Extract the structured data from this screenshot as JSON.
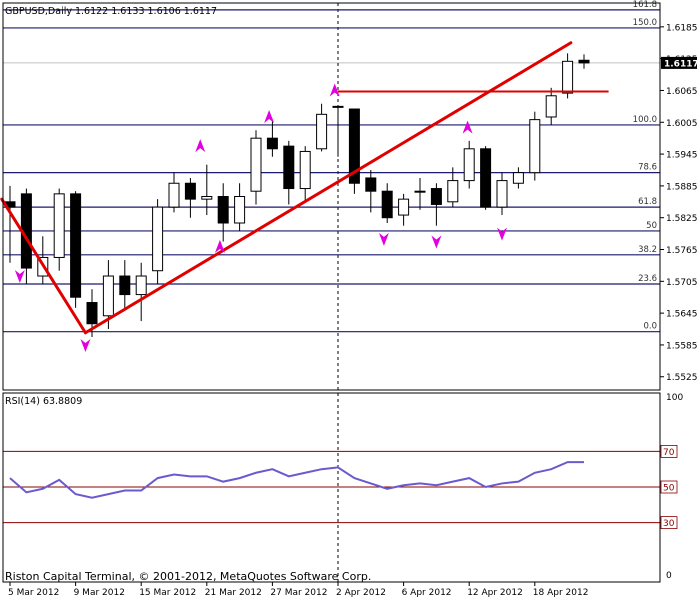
{
  "window": {
    "header": "GBPUSD,Daily  1.6122 1.6133 1.6106 1.6117",
    "footer": "Riston Capital Terminal, © 2001-2012, MetaQuotes Software Corp."
  },
  "colors": {
    "background": "#ffffff",
    "frame": "#000000",
    "fib_line": "#1a1a6e",
    "trendline": "#e00000",
    "arrow": "#e000e0",
    "rsi_line": "#6a5acd",
    "rsi_level": "#8b0000",
    "price_marker_bg": "#000000",
    "price_marker_text": "#ffffff"
  },
  "chart_data": [
    {
      "type": "candlestick",
      "symbol": "GBPUSD",
      "timeframe": "Daily",
      "header_ohlc": {
        "open": 1.6122,
        "high": 1.6133,
        "low": 1.6106,
        "close": 1.6117
      },
      "current_price": "1.6117",
      "ylim": [
        1.55,
        1.623
      ],
      "y_ticks": [
        "1.6185",
        "1.6125",
        "1.6065",
        "1.6005",
        "1.5945",
        "1.5885",
        "1.5825",
        "1.5765",
        "1.5705",
        "1.5645",
        "1.5585",
        "1.5525"
      ],
      "x_ticks": [
        {
          "label": "5 Mar 2012",
          "index": 0
        },
        {
          "label": "9 Mar 2012",
          "index": 4
        },
        {
          "label": "15 Mar 2012",
          "index": 8
        },
        {
          "label": "21 Mar 2012",
          "index": 12
        },
        {
          "label": "27 Mar 2012",
          "index": 16
        },
        {
          "label": "2 Apr 2012",
          "index": 20
        },
        {
          "label": "6 Apr 2012",
          "index": 24
        },
        {
          "label": "12 Apr 2012",
          "index": 28
        },
        {
          "label": "18 Apr 2012",
          "index": 32
        }
      ],
      "candles": [
        {
          "o": 1.5855,
          "h": 1.5885,
          "l": 1.574,
          "c": 1.5845
        },
        {
          "o": 1.587,
          "h": 1.588,
          "l": 1.57,
          "c": 1.573
        },
        {
          "o": 1.5715,
          "h": 1.579,
          "l": 1.57,
          "c": 1.575
        },
        {
          "o": 1.575,
          "h": 1.588,
          "l": 1.5725,
          "c": 1.587
        },
        {
          "o": 1.587,
          "h": 1.5875,
          "l": 1.5655,
          "c": 1.5675
        },
        {
          "o": 1.5665,
          "h": 1.569,
          "l": 1.56,
          "c": 1.5625
        },
        {
          "o": 1.564,
          "h": 1.5745,
          "l": 1.5615,
          "c": 1.5715
        },
        {
          "o": 1.5715,
          "h": 1.5745,
          "l": 1.565,
          "c": 1.568
        },
        {
          "o": 1.568,
          "h": 1.574,
          "l": 1.563,
          "c": 1.5715
        },
        {
          "o": 1.5725,
          "h": 1.586,
          "l": 1.57,
          "c": 1.5845
        },
        {
          "o": 1.5845,
          "h": 1.591,
          "l": 1.5835,
          "c": 1.589
        },
        {
          "o": 1.589,
          "h": 1.59,
          "l": 1.5825,
          "c": 1.586
        },
        {
          "o": 1.586,
          "h": 1.5925,
          "l": 1.583,
          "c": 1.5865
        },
        {
          "o": 1.5865,
          "h": 1.589,
          "l": 1.578,
          "c": 1.5815
        },
        {
          "o": 1.5815,
          "h": 1.589,
          "l": 1.58,
          "c": 1.5865
        },
        {
          "o": 1.5875,
          "h": 1.599,
          "l": 1.585,
          "c": 1.5975
        },
        {
          "o": 1.5975,
          "h": 1.601,
          "l": 1.594,
          "c": 1.5955
        },
        {
          "o": 1.596,
          "h": 1.597,
          "l": 1.585,
          "c": 1.588
        },
        {
          "o": 1.588,
          "h": 1.596,
          "l": 1.5855,
          "c": 1.595
        },
        {
          "o": 1.5955,
          "h": 1.604,
          "l": 1.595,
          "c": 1.602
        },
        {
          "o": 1.6035,
          "h": 1.6035,
          "l": 1.594,
          "c": 1.6035
        },
        {
          "o": 1.603,
          "h": 1.603,
          "l": 1.587,
          "c": 1.589
        },
        {
          "o": 1.59,
          "h": 1.5915,
          "l": 1.5835,
          "c": 1.5875
        },
        {
          "o": 1.5875,
          "h": 1.589,
          "l": 1.5815,
          "c": 1.5825
        },
        {
          "o": 1.583,
          "h": 1.587,
          "l": 1.581,
          "c": 1.586
        },
        {
          "o": 1.5875,
          "h": 1.59,
          "l": 1.584,
          "c": 1.5875
        },
        {
          "o": 1.588,
          "h": 1.589,
          "l": 1.581,
          "c": 1.585
        },
        {
          "o": 1.5855,
          "h": 1.592,
          "l": 1.5845,
          "c": 1.5895
        },
        {
          "o": 1.5895,
          "h": 1.597,
          "l": 1.588,
          "c": 1.5955
        },
        {
          "o": 1.5955,
          "h": 1.596,
          "l": 1.584,
          "c": 1.5845
        },
        {
          "o": 1.5845,
          "h": 1.591,
          "l": 1.583,
          "c": 1.5895
        },
        {
          "o": 1.589,
          "h": 1.592,
          "l": 1.588,
          "c": 1.591
        },
        {
          "o": 1.591,
          "h": 1.6025,
          "l": 1.5895,
          "c": 1.601
        },
        {
          "o": 1.6015,
          "h": 1.607,
          "l": 1.6,
          "c": 1.6055
        },
        {
          "o": 1.606,
          "h": 1.6135,
          "l": 1.605,
          "c": 1.612
        },
        {
          "o": 1.6122,
          "h": 1.6133,
          "l": 1.6106,
          "c": 1.6117
        }
      ],
      "fibonacci": {
        "levels": [
          {
            "label": "161.8",
            "price": 1.6217
          },
          {
            "label": "150.0",
            "price": 1.6183
          },
          {
            "label": "100.0",
            "price": 1.6
          },
          {
            "label": "78.6",
            "price": 1.591
          },
          {
            "label": "61.8",
            "price": 1.5845
          },
          {
            "label": "50",
            "price": 1.58
          },
          {
            "label": "38.2",
            "price": 1.5755
          },
          {
            "label": "23.6",
            "price": 1.57
          },
          {
            "label": "0.0",
            "price": 1.561
          }
        ]
      },
      "trendlines": [
        {
          "from": {
            "index": -0.5,
            "price": 1.586
          },
          "to": {
            "index": 4.6,
            "price": 1.5608
          }
        },
        {
          "from": {
            "index": 4.6,
            "price": 1.5608
          },
          "to": {
            "index": 34.2,
            "price": 1.6155
          }
        }
      ],
      "horizontal_line": {
        "price": 1.6063,
        "from_index": 20,
        "to_index": 36.5
      },
      "vertical_marker_index": 20,
      "arrows": [
        {
          "index": 0.6,
          "price": 1.5715,
          "dir": "down"
        },
        {
          "index": 4.6,
          "price": 1.5585,
          "dir": "down"
        },
        {
          "index": 11.6,
          "price": 1.596,
          "dir": "up"
        },
        {
          "index": 12.8,
          "price": 1.577,
          "dir": "up"
        },
        {
          "index": 15.8,
          "price": 1.6015,
          "dir": "up"
        },
        {
          "index": 19.8,
          "price": 1.6065,
          "dir": "up"
        },
        {
          "index": 22.8,
          "price": 1.5785,
          "dir": "down"
        },
        {
          "index": 26.0,
          "price": 1.578,
          "dir": "down"
        },
        {
          "index": 27.9,
          "price": 1.5995,
          "dir": "up"
        },
        {
          "index": 30.0,
          "price": 1.5795,
          "dir": "down"
        }
      ]
    },
    {
      "type": "line",
      "name": "RSI(14) 63.8809",
      "ylim": [
        0,
        100
      ],
      "y_ticks": [
        "100",
        "0"
      ],
      "levels": [
        "70",
        "50",
        "30"
      ],
      "values": [
        55,
        47,
        49,
        54,
        46,
        44,
        46,
        48,
        48,
        55,
        57,
        56,
        56,
        53,
        55,
        58,
        60,
        56,
        58,
        60,
        61,
        55,
        52,
        49,
        51,
        52,
        51,
        53,
        55,
        50,
        52,
        53,
        58,
        60,
        64,
        64
      ]
    }
  ]
}
